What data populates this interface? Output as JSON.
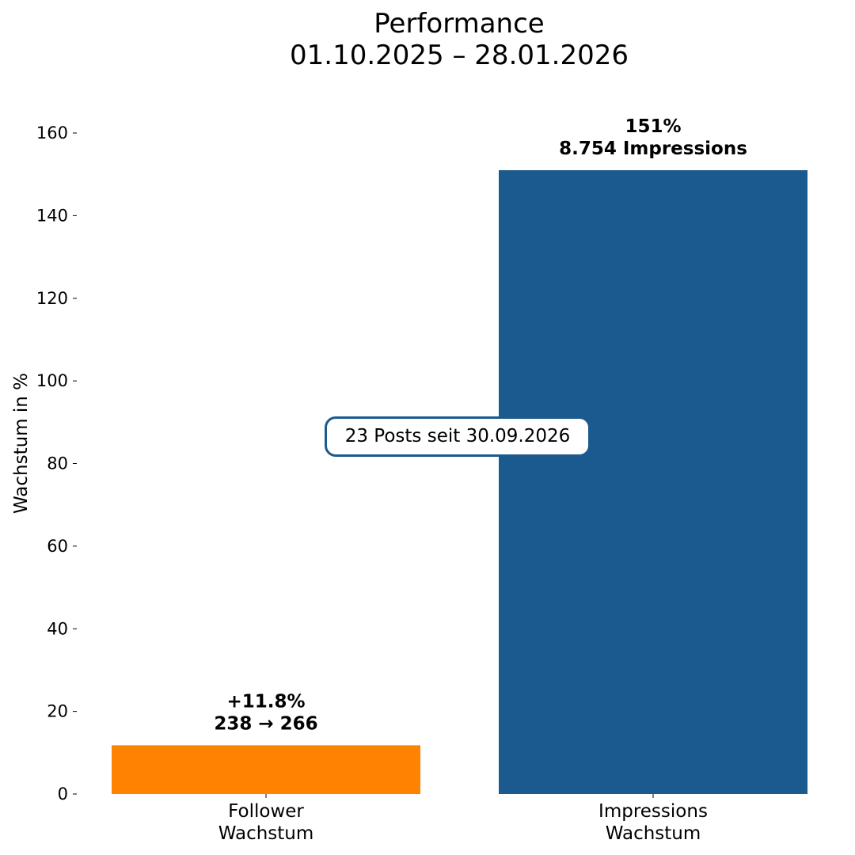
{
  "chart_data": {
    "type": "bar",
    "title": "Performance",
    "subtitle": "01.10.2025 – 28.01.2026",
    "ylabel": "Wachstum in %",
    "xlabel": "",
    "ylim": [
      0,
      160
    ],
    "yticks": [
      0,
      20,
      40,
      60,
      80,
      100,
      120,
      140,
      160
    ],
    "grid": false,
    "categories": [
      {
        "line1": "Follower",
        "line2": "Wachstum"
      },
      {
        "line1": "Impressions",
        "line2": "Wachstum"
      }
    ],
    "values": [
      11.8,
      151
    ],
    "colors": [
      "#ff8200",
      "#1b5a8e"
    ],
    "bar_labels": [
      {
        "line1": "+11.8%",
        "line2": "238 → 266"
      },
      {
        "line1": "151%",
        "line2": "8.754 Impressions"
      }
    ],
    "annotation": "23 Posts seit 30.09.2026"
  }
}
